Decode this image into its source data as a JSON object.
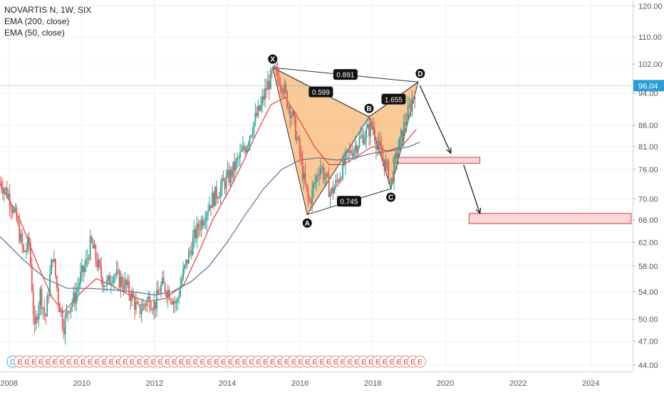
{
  "legend": {
    "title": "NOVARTIS N, 1W, SIX",
    "ema200": "EMA (200, close)",
    "ema50": "EMA (50, close)"
  },
  "colors": {
    "grid": "#eef0f4",
    "axis_text": "#555555",
    "price_line": "#2a9fd6",
    "price_label_bg": "#2a9fd6",
    "candle_up": "#26a69a",
    "candle_down": "#ef5350",
    "ema50": "#e53935",
    "ema200": "#5a6b99",
    "pattern_fill": "#f6b26b",
    "pattern_stroke": "#333333",
    "target_fill": "#f8d7da",
    "target_stroke": "#e53935",
    "marker_stroke": "#ef9a9a",
    "dividend_stroke": "#4fc3f7"
  },
  "chart_data": {
    "type": "candlestick",
    "y_scale": "log",
    "ylim": [
      43.2,
      122
    ],
    "xlim": [
      2007.75,
      2025.15
    ],
    "y_ticks": [
      "120.00",
      "110.00",
      "102.00",
      "94.00",
      "86.00",
      "81.00",
      "76.00",
      "70.00",
      "66.00",
      "62.00",
      "58.00",
      "54.00",
      "50.00",
      "47.00",
      "44.00"
    ],
    "x_ticks": [
      "2008",
      "2010",
      "2012",
      "2014",
      "2016",
      "2018",
      "2020",
      "2022",
      "2024"
    ],
    "current_price": "96.04",
    "price_path": [
      [
        2007.75,
        73.5
      ],
      [
        2008.0,
        70.5
      ],
      [
        2008.2,
        66
      ],
      [
        2008.4,
        60
      ],
      [
        2008.55,
        62
      ],
      [
        2008.7,
        48
      ],
      [
        2008.85,
        54
      ],
      [
        2009.0,
        50
      ],
      [
        2009.1,
        55
      ],
      [
        2009.2,
        60
      ],
      [
        2009.35,
        53
      ],
      [
        2009.5,
        49
      ],
      [
        2009.65,
        52
      ],
      [
        2009.8,
        53
      ],
      [
        2009.95,
        56
      ],
      [
        2010.1,
        58
      ],
      [
        2010.25,
        62
      ],
      [
        2010.4,
        59
      ],
      [
        2010.55,
        56
      ],
      [
        2010.7,
        55
      ],
      [
        2010.85,
        57
      ],
      [
        2011.0,
        56
      ],
      [
        2011.2,
        55
      ],
      [
        2011.4,
        53
      ],
      [
        2011.55,
        51
      ],
      [
        2011.7,
        52
      ],
      [
        2011.85,
        53
      ],
      [
        2012.0,
        52
      ],
      [
        2012.2,
        55
      ],
      [
        2012.4,
        54
      ],
      [
        2012.6,
        52
      ],
      [
        2012.75,
        56
      ],
      [
        2012.9,
        59
      ],
      [
        2013.1,
        63
      ],
      [
        2013.3,
        66
      ],
      [
        2013.5,
        69
      ],
      [
        2013.7,
        71
      ],
      [
        2013.9,
        73
      ],
      [
        2014.1,
        75
      ],
      [
        2014.3,
        78
      ],
      [
        2014.5,
        81
      ],
      [
        2014.7,
        86
      ],
      [
        2014.9,
        90
      ],
      [
        2015.1,
        96
      ],
      [
        2015.3,
        100
      ],
      [
        2015.5,
        97
      ],
      [
        2015.65,
        92
      ],
      [
        2015.8,
        88
      ],
      [
        2016.0,
        79
      ],
      [
        2016.1,
        74
      ],
      [
        2016.25,
        69
      ],
      [
        2016.4,
        73
      ],
      [
        2016.55,
        77
      ],
      [
        2016.7,
        74
      ],
      [
        2016.85,
        71
      ],
      [
        2017.0,
        73
      ],
      [
        2017.2,
        77
      ],
      [
        2017.4,
        80
      ],
      [
        2017.6,
        82
      ],
      [
        2017.8,
        84
      ],
      [
        2018.0,
        86
      ],
      [
        2018.1,
        82
      ],
      [
        2018.25,
        79
      ],
      [
        2018.4,
        76
      ],
      [
        2018.5,
        73
      ],
      [
        2018.6,
        77
      ],
      [
        2018.75,
        82
      ],
      [
        2018.9,
        87
      ],
      [
        2019.05,
        91
      ],
      [
        2019.2,
        96
      ]
    ],
    "ema50_path": [
      [
        2007.75,
        73
      ],
      [
        2008.3,
        66
      ],
      [
        2008.8,
        58
      ],
      [
        2009.2,
        53
      ],
      [
        2009.5,
        51
      ],
      [
        2010.0,
        54
      ],
      [
        2010.4,
        56
      ],
      [
        2010.8,
        55
      ],
      [
        2011.3,
        53.5
      ],
      [
        2011.8,
        52.5
      ],
      [
        2012.3,
        53
      ],
      [
        2012.8,
        55
      ],
      [
        2013.2,
        60
      ],
      [
        2013.6,
        66
      ],
      [
        2014.0,
        71
      ],
      [
        2014.4,
        77
      ],
      [
        2014.8,
        84
      ],
      [
        2015.2,
        91
      ],
      [
        2015.6,
        93
      ],
      [
        2016.0,
        87
      ],
      [
        2016.4,
        81
      ],
      [
        2016.8,
        77
      ],
      [
        2017.2,
        77
      ],
      [
        2017.6,
        79
      ],
      [
        2018.0,
        81
      ],
      [
        2018.4,
        80
      ],
      [
        2018.8,
        81
      ],
      [
        2019.2,
        85
      ]
    ],
    "ema200_path": [
      [
        2007.75,
        63
      ],
      [
        2008.4,
        59
      ],
      [
        2009.0,
        56
      ],
      [
        2009.6,
        54.5
      ],
      [
        2010.2,
        54.5
      ],
      [
        2010.8,
        54.3
      ],
      [
        2011.4,
        54
      ],
      [
        2012.0,
        53.5
      ],
      [
        2012.5,
        54
      ],
      [
        2013.0,
        55.5
      ],
      [
        2013.5,
        58
      ],
      [
        2014.0,
        62
      ],
      [
        2014.5,
        67
      ],
      [
        2015.0,
        72
      ],
      [
        2015.5,
        76
      ],
      [
        2016.0,
        78
      ],
      [
        2016.5,
        78.5
      ],
      [
        2017.0,
        78
      ],
      [
        2017.5,
        78.5
      ],
      [
        2018.0,
        79.5
      ],
      [
        2018.5,
        80
      ],
      [
        2019.0,
        81
      ],
      [
        2019.3,
        82
      ]
    ],
    "pattern": {
      "points": [
        {
          "label": "X",
          "x": 2015.25,
          "y": 101
        },
        {
          "label": "A",
          "x": 2016.2,
          "y": 67
        },
        {
          "label": "B",
          "x": 2017.9,
          "y": 88
        },
        {
          "label": "C",
          "x": 2018.5,
          "y": 72
        },
        {
          "label": "D",
          "x": 2019.25,
          "y": 97
        }
      ],
      "ratios": [
        {
          "label": "0.599",
          "between": [
            "X",
            "B"
          ]
        },
        {
          "label": "0.745",
          "between": [
            "A",
            "C"
          ]
        },
        {
          "label": "1.655",
          "between": [
            "B",
            "D"
          ]
        },
        {
          "label": "0.891",
          "between": [
            "X",
            "D"
          ]
        }
      ]
    },
    "targets": [
      {
        "x0": 2018.55,
        "x1": 2020.95,
        "y0": 77.3,
        "y1": 78.6
      },
      {
        "x0": 2020.65,
        "x1": 2025.9,
        "y0": 65.3,
        "y1": 67.2
      }
    ],
    "arrows": [
      {
        "from": [
          2019.3,
          96
        ],
        "to": [
          2020.15,
          79.5
        ]
      },
      {
        "from": [
          2020.5,
          77
        ],
        "to": [
          2020.95,
          67.2
        ]
      }
    ],
    "event_markers": [
      {
        "label": "D",
        "type": "dividend"
      },
      {
        "label": "E"
      },
      {
        "label": "E"
      },
      {
        "label": "E"
      },
      {
        "label": "E"
      },
      {
        "label": "E"
      },
      {
        "label": "E"
      },
      {
        "label": "E"
      },
      {
        "label": "E"
      },
      {
        "label": "E"
      },
      {
        "label": "E"
      },
      {
        "label": "E"
      },
      {
        "label": "E"
      },
      {
        "label": "E"
      },
      {
        "label": "E"
      },
      {
        "label": "E"
      },
      {
        "label": "E"
      },
      {
        "label": "E"
      },
      {
        "label": "E"
      },
      {
        "label": "E"
      },
      {
        "label": "E"
      },
      {
        "label": "E"
      },
      {
        "label": "E"
      },
      {
        "label": "E"
      },
      {
        "label": "E"
      },
      {
        "label": "E"
      },
      {
        "label": "E"
      },
      {
        "label": "E"
      },
      {
        "label": "E"
      },
      {
        "label": "E"
      },
      {
        "label": "E"
      },
      {
        "label": "E"
      },
      {
        "label": "E"
      },
      {
        "label": "E"
      },
      {
        "label": "E"
      },
      {
        "label": "E"
      },
      {
        "label": "E"
      },
      {
        "label": "E"
      },
      {
        "label": "E"
      },
      {
        "label": "E"
      },
      {
        "label": "E"
      },
      {
        "label": "E"
      },
      {
        "label": "E"
      },
      {
        "label": "E"
      },
      {
        "label": "E"
      },
      {
        "label": "E"
      },
      {
        "label": "E"
      },
      {
        "label": "E"
      },
      {
        "label": "E"
      },
      {
        "label": "E"
      },
      {
        "label": "E"
      },
      {
        "label": "E"
      },
      {
        "label": "E"
      },
      {
        "label": "E"
      },
      {
        "label": "E"
      },
      {
        "label": "E"
      },
      {
        "label": "E"
      },
      {
        "label": "E"
      },
      {
        "label": "E"
      }
    ]
  }
}
